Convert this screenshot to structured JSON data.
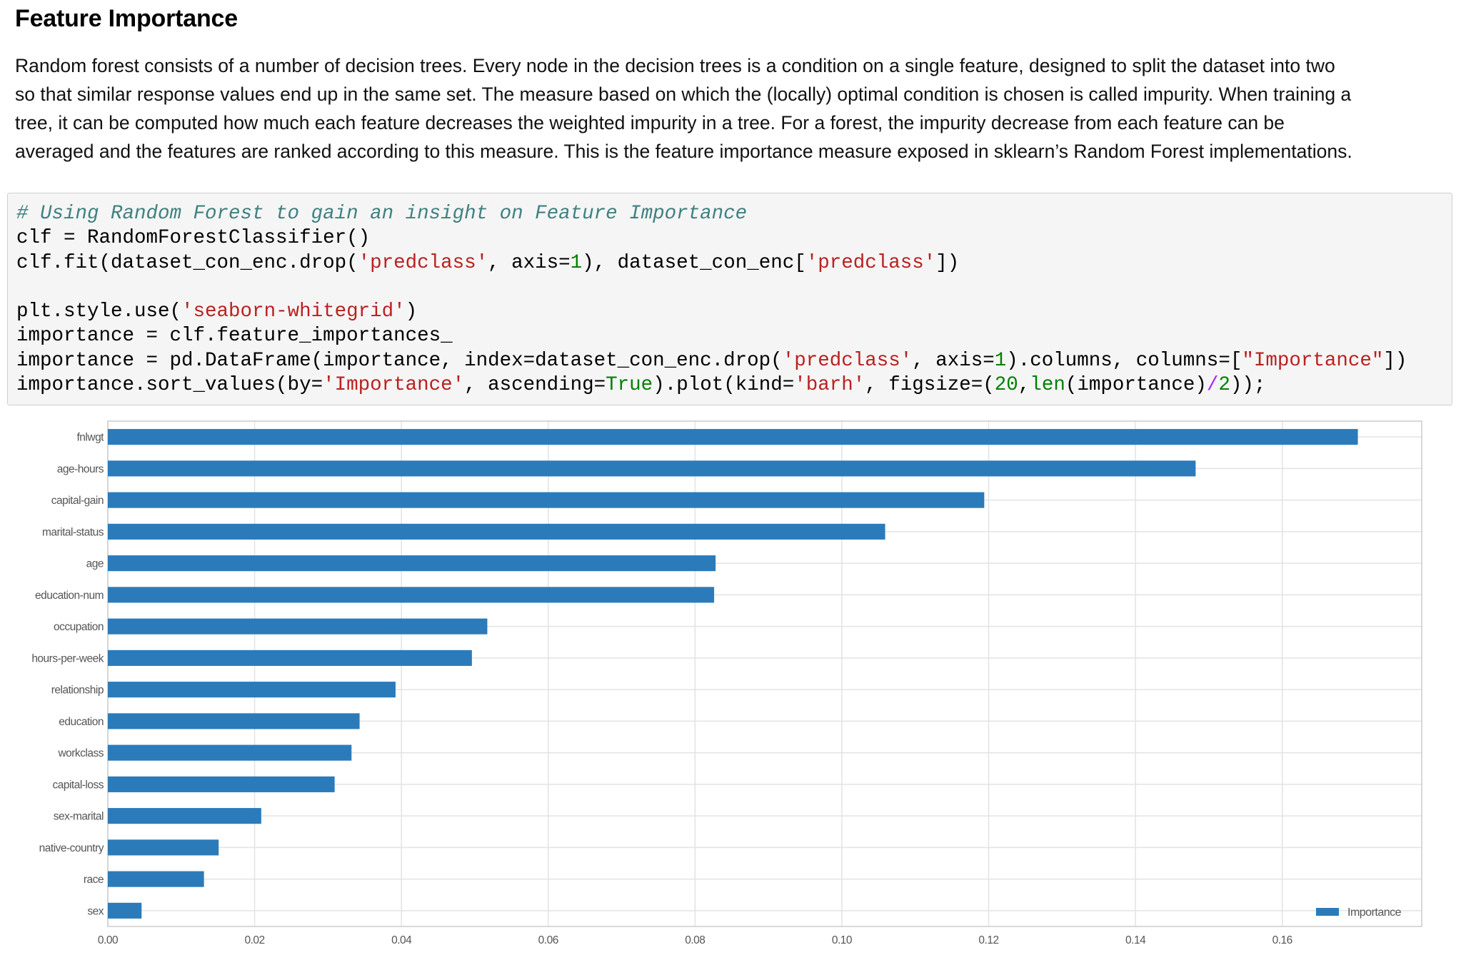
{
  "section": {
    "title": "Feature Importance",
    "paragraph_lines": [
      "Random forest consists of a number of decision trees. Every node in the decision trees is a condition on a single feature, designed to split the dataset into two",
      "so that similar response values end up in the same set. The measure based on which the (locally) optimal condition is chosen is called impurity. When training a",
      "tree, it can be computed how much each feature decreases the weighted impurity in a tree. For a forest, the impurity decrease from each feature can be",
      "averaged and the features are ranked according to this measure. This is the feature importance measure exposed in sklearn’s Random Forest implementations."
    ]
  },
  "code_cell": {
    "lines": [
      [
        {
          "t": "# Using Random Forest to gain an insight on Feature Importance",
          "c": "cm"
        }
      ],
      [
        {
          "t": "clf = RandomForestClassifier()",
          "c": ""
        }
      ],
      [
        {
          "t": "clf.fit(dataset_con_enc.drop(",
          "c": ""
        },
        {
          "t": "'predclass'",
          "c": "st"
        },
        {
          "t": ", axis=",
          "c": ""
        },
        {
          "t": "1",
          "c": "nm"
        },
        {
          "t": "), dataset_con_enc[",
          "c": ""
        },
        {
          "t": "'predclass'",
          "c": "st"
        },
        {
          "t": "])",
          "c": ""
        }
      ],
      [
        {
          "t": "",
          "c": ""
        }
      ],
      [
        {
          "t": "plt.style.use(",
          "c": ""
        },
        {
          "t": "'seaborn-whitegrid'",
          "c": "st"
        },
        {
          "t": ")",
          "c": ""
        }
      ],
      [
        {
          "t": "importance = clf.feature_importances_",
          "c": ""
        }
      ],
      [
        {
          "t": "importance = pd.DataFrame(importance, index=dataset_con_enc.drop(",
          "c": ""
        },
        {
          "t": "'predclass'",
          "c": "st"
        },
        {
          "t": ", axis=",
          "c": ""
        },
        {
          "t": "1",
          "c": "nm"
        },
        {
          "t": ").columns, columns=[",
          "c": ""
        },
        {
          "t": "\"Importance\"",
          "c": "st"
        },
        {
          "t": "])",
          "c": ""
        }
      ],
      [
        {
          "t": "importance.sort_values(by=",
          "c": ""
        },
        {
          "t": "'Importance'",
          "c": "st"
        },
        {
          "t": ", ascending=",
          "c": ""
        },
        {
          "t": "True",
          "c": "kw"
        },
        {
          "t": ").plot(kind=",
          "c": ""
        },
        {
          "t": "'barh'",
          "c": "st"
        },
        {
          "t": ", figsize=(",
          "c": ""
        },
        {
          "t": "20",
          "c": "nm"
        },
        {
          "t": ",",
          "c": ""
        },
        {
          "t": "len",
          "c": "kw"
        },
        {
          "t": "(importance)",
          "c": ""
        },
        {
          "t": "/",
          "c": "op"
        },
        {
          "t": "2",
          "c": "nm"
        },
        {
          "t": "));",
          "c": ""
        }
      ]
    ]
  },
  "chart_data": {
    "type": "bar",
    "orientation": "horizontal",
    "categories": [
      "fnlwgt",
      "age-hours",
      "capital-gain",
      "marital-status",
      "age",
      "education-num",
      "occupation",
      "hours-per-week",
      "relationship",
      "education",
      "workclass",
      "capital-loss",
      "sex-marital",
      "native-country",
      "race",
      "sex"
    ],
    "series": [
      {
        "name": "Importance",
        "values": [
          0.1703,
          0.1482,
          0.1194,
          0.1059,
          0.0828,
          0.0826,
          0.0517,
          0.0496,
          0.0392,
          0.0343,
          0.0332,
          0.0309,
          0.0209,
          0.0151,
          0.0131,
          0.0046
        ],
        "color": "#2b7bba"
      }
    ],
    "xlim": [
      0,
      0.179
    ],
    "xticks": [
      0.0,
      0.02,
      0.04,
      0.06,
      0.08,
      0.1,
      0.12,
      0.14,
      0.16
    ],
    "xtick_labels": [
      "0.00",
      "0.02",
      "0.04",
      "0.06",
      "0.08",
      "0.10",
      "0.12",
      "0.14",
      "0.16"
    ],
    "title": "",
    "xlabel": "",
    "ylabel": "",
    "grid": true,
    "legend": "bottom-right"
  }
}
